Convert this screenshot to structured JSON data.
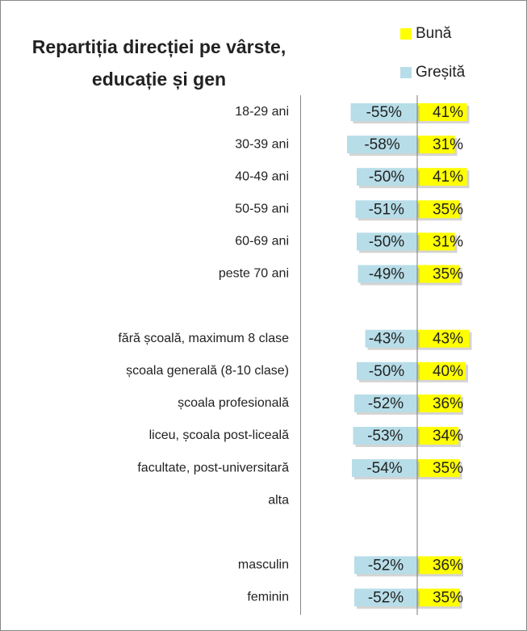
{
  "chart_data": {
    "type": "diverging_bar",
    "title": [
      "Repartiția direcției pe vârste,",
      "educație și gen"
    ],
    "categories": [
      "18-29 ani",
      "30-39 ani",
      "40-49 ani",
      "50-59 ani",
      "60-69 ani",
      "peste 70 ani",
      null,
      "fără școală, maximum 8 clase",
      "școala generală (8-10 clase)",
      "școala profesională",
      "liceu, școala post-liceală",
      "facultate, post-universitară",
      "alta",
      null,
      "masculin",
      "feminin"
    ],
    "series": [
      {
        "name": "Bună",
        "color": "#ffff00",
        "values": [
          41,
          31,
          41,
          35,
          31,
          35,
          null,
          43,
          40,
          36,
          34,
          35,
          null,
          null,
          36,
          35
        ],
        "value_labels": [
          "41%",
          "31%",
          "41%",
          "35%",
          "31%",
          "35%",
          null,
          "43%",
          "40%",
          "36%",
          "34%",
          "35%",
          null,
          null,
          "36%",
          "35%"
        ]
      },
      {
        "name": "Greșită",
        "color": "#b7dde8",
        "values": [
          -55,
          -58,
          -50,
          -51,
          -50,
          -49,
          null,
          -43,
          -50,
          -52,
          -53,
          -54,
          null,
          null,
          -52,
          -52
        ],
        "value_labels": [
          "-55%",
          "-58%",
          "-50%",
          "-51%",
          "-50%",
          "-49%",
          null,
          "-43%",
          "-50%",
          "-52%",
          "-53%",
          "-54%",
          null,
          null,
          "-52%",
          "-52%"
        ]
      }
    ],
    "xlim": [
      -70,
      70
    ]
  }
}
